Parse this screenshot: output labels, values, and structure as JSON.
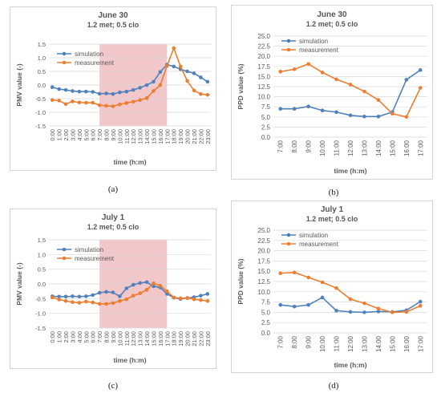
{
  "chart_data": [
    {
      "type": "line",
      "caption": "(a)",
      "title": "June 30",
      "subtitle": "1.2 met; 0.5 clo",
      "xlabel": "time (h:m)",
      "ylabel": "PMV value (-)",
      "ylim": [
        -1.5,
        1.5
      ],
      "yticks": [
        -1.5,
        -1.0,
        -0.5,
        0.0,
        0.5,
        1.0,
        1.5
      ],
      "ytick_format": 1,
      "categories": [
        "0:00",
        "1:00",
        "2:00",
        "3:00",
        "4:00",
        "5:00",
        "6:00",
        "7:00",
        "8:00",
        "9:00",
        "10:00",
        "11:00",
        "12:00",
        "13:00",
        "14:00",
        "15:00",
        "16:00",
        "17:00",
        "18:00",
        "19:00",
        "20:00",
        "21:00",
        "22:00",
        "23:00"
      ],
      "shade": {
        "from": 7,
        "to": 17,
        "color": "#f2c7c9"
      },
      "legend": "top-left",
      "series": [
        {
          "name": "simulation",
          "color": "#4f81bd",
          "values": [
            -0.08,
            -0.15,
            -0.18,
            -0.22,
            -0.24,
            -0.24,
            -0.25,
            -0.32,
            -0.31,
            -0.33,
            -0.27,
            -0.24,
            -0.18,
            -0.1,
            0.0,
            0.12,
            0.48,
            0.75,
            0.68,
            0.58,
            0.5,
            0.43,
            0.28,
            0.12
          ]
        },
        {
          "name": "measurement",
          "color": "#ed7d31",
          "values": [
            -0.55,
            -0.57,
            -0.7,
            -0.6,
            -0.64,
            -0.65,
            -0.65,
            -0.74,
            -0.76,
            -0.78,
            -0.71,
            -0.66,
            -0.61,
            -0.55,
            -0.48,
            -0.22,
            0.0,
            0.7,
            1.35,
            0.68,
            0.15,
            -0.2,
            -0.33,
            -0.36
          ]
        }
      ]
    },
    {
      "type": "line",
      "caption": "(b)",
      "title": "June 30",
      "subtitle": "1.2 met; 0.5 clo",
      "xlabel": "time (h:m)",
      "ylabel": "PPD value (%)",
      "ylim": [
        0,
        25
      ],
      "yticks": [
        0,
        2.5,
        5,
        7.5,
        10,
        12.5,
        15,
        17.5,
        20,
        22.5,
        25
      ],
      "ytick_format": 1,
      "categories": [
        "7:00",
        "8:00",
        "9:00",
        "10:00",
        "11:00",
        "12:00",
        "13:00",
        "14:00",
        "15:00",
        "16:00",
        "17:00"
      ],
      "legend": "top-left",
      "series": [
        {
          "name": "simulation",
          "color": "#4f81bd",
          "values": [
            7.0,
            7.0,
            7.6,
            6.6,
            6.2,
            5.4,
            5.1,
            5.1,
            6.2,
            14.2,
            16.6
          ]
        },
        {
          "name": "measurement",
          "color": "#ed7d31",
          "values": [
            16.2,
            16.8,
            18.1,
            16.0,
            14.3,
            13.0,
            11.3,
            9.2,
            5.8,
            5.0,
            12.2
          ]
        }
      ]
    },
    {
      "type": "line",
      "caption": "(c)",
      "title": "July 1",
      "subtitle": "1.2 met; 0.5 clo",
      "xlabel": "time (h:m)",
      "ylabel": "PMV value (-)",
      "ylim": [
        -1.5,
        1.5
      ],
      "yticks": [
        -1.5,
        -1.0,
        -0.5,
        0.0,
        0.5,
        1.0,
        1.5
      ],
      "ytick_format": 1,
      "categories": [
        "0:00",
        "1:00",
        "2:00",
        "3:00",
        "4:00",
        "5:00",
        "6:00",
        "7:00",
        "8:00",
        "9:00",
        "10:00",
        "11:00",
        "12:00",
        "13:00",
        "14:00",
        "15:00",
        "16:00",
        "17:00",
        "18:00",
        "19:00",
        "20:00",
        "21:00",
        "22:00",
        "23:00"
      ],
      "shade": {
        "from": 7,
        "to": 17,
        "color": "#f2c7c9"
      },
      "legend": "top-left",
      "series": [
        {
          "name": "simulation",
          "color": "#4f81bd",
          "values": [
            -0.42,
            -0.43,
            -0.43,
            -0.42,
            -0.43,
            -0.42,
            -0.38,
            -0.3,
            -0.27,
            -0.29,
            -0.42,
            -0.15,
            -0.03,
            0.03,
            0.06,
            -0.08,
            -0.12,
            -0.34,
            -0.47,
            -0.51,
            -0.48,
            -0.45,
            -0.4,
            -0.34
          ]
        },
        {
          "name": "measurement",
          "color": "#ed7d31",
          "values": [
            -0.46,
            -0.53,
            -0.58,
            -0.62,
            -0.64,
            -0.6,
            -0.63,
            -0.68,
            -0.68,
            -0.65,
            -0.58,
            -0.52,
            -0.4,
            -0.32,
            -0.2,
            0.02,
            -0.06,
            -0.25,
            -0.46,
            -0.49,
            -0.48,
            -0.52,
            -0.55,
            -0.58
          ]
        }
      ]
    },
    {
      "type": "line",
      "caption": "(d)",
      "title": "July 1",
      "subtitle": "1.2 met; 0.5 clo",
      "xlabel": "time (h:m)",
      "ylabel": "PPD value (%)",
      "ylim": [
        0,
        25
      ],
      "yticks": [
        0,
        2.5,
        5,
        7.5,
        10,
        12.5,
        15,
        17.5,
        20,
        22.5,
        25
      ],
      "ytick_format": 1,
      "categories": [
        "7:00",
        "8:00",
        "9:00",
        "10:00",
        "11:00",
        "12:00",
        "13:00",
        "14:00",
        "15:00",
        "16:00",
        "17:00"
      ],
      "legend": "top-left",
      "series": [
        {
          "name": "simulation",
          "color": "#4f81bd",
          "values": [
            6.8,
            6.4,
            6.8,
            8.6,
            5.4,
            5.1,
            5.0,
            5.2,
            5.1,
            5.5,
            7.6
          ]
        },
        {
          "name": "measurement",
          "color": "#ed7d31",
          "values": [
            14.5,
            14.7,
            13.5,
            12.3,
            10.9,
            8.2,
            7.2,
            5.9,
            5.0,
            5.1,
            6.6
          ]
        }
      ]
    }
  ]
}
